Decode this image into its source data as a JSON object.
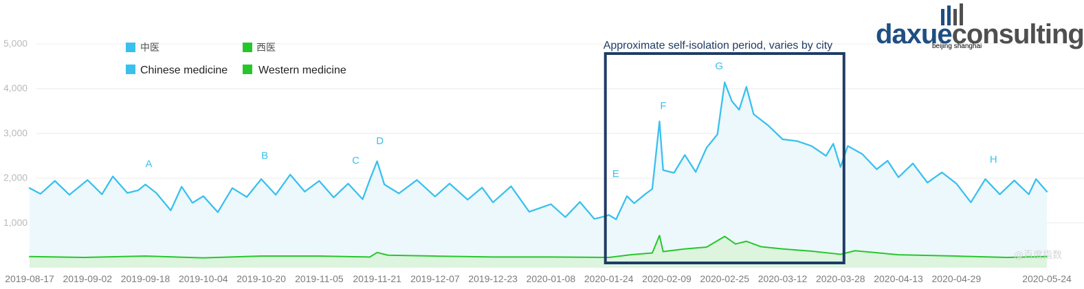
{
  "colors": {
    "chinese_line": "#39c0ee",
    "chinese_fill": "#edf8fc",
    "western_line": "#26c62b",
    "western_fill": "#ddf4df",
    "grid": "#ececec",
    "box": "#1f3c66",
    "brand_blue": "#1f4f82",
    "brand_gray": "#4f4f4f"
  },
  "brand": {
    "main_dark": "daxue",
    "main_light": "consulting",
    "sub": "beijing shanghai"
  },
  "watermark": "@百度指数",
  "chart_data": {
    "type": "line",
    "ylim": [
      0,
      5000
    ],
    "yticks": [
      {
        "value": 1000,
        "label": "1,000"
      },
      {
        "value": 2000,
        "label": "2,000"
      },
      {
        "value": 3000,
        "label": "3,000"
      },
      {
        "value": 4000,
        "label": "4,000"
      },
      {
        "value": 5000,
        "label": "5,000"
      }
    ],
    "x_tick_labels": [
      "2019-08-17",
      "2019-09-02",
      "2019-09-18",
      "2019-10-04",
      "2019-10-20",
      "2019-11-05",
      "2019-11-21",
      "2019-12-07",
      "2019-12-23",
      "2020-01-08",
      "2020-01-24",
      "2020-02-09",
      "2020-02-25",
      "2020-03-12",
      "2020-03-28",
      "2020-04-13",
      "2020-04-29",
      "2020-05-24"
    ],
    "x_start": "2019-08-17",
    "x_end": "2020-05-24",
    "legend": [
      {
        "cn": "中医",
        "en": "Chinese medicine",
        "color": "#39c0ee"
      },
      {
        "cn": "西医",
        "en": "Western medicine",
        "color": "#26c62b"
      }
    ],
    "highlight_period": {
      "label": "Approximate self-isolation period, varies by city",
      "start": "2020-01-24",
      "end": "2020-03-28"
    },
    "annotations": [
      {
        "label": "A",
        "date": "2019-09-18",
        "value": 1880
      },
      {
        "label": "B",
        "date": "2019-10-20",
        "value": 2060
      },
      {
        "label": "C",
        "date": "2019-11-21",
        "value": 1970
      },
      {
        "label": "D",
        "date": "2019-11-21",
        "value": 2390
      },
      {
        "label": "E",
        "date": "2020-01-24",
        "value": 1690
      },
      {
        "label": "F",
        "date": "2020-02-09",
        "value": 3270
      },
      {
        "label": "G",
        "date": "2020-02-25",
        "value": 4140
      },
      {
        "label": "H",
        "date": "2020-04-29",
        "value": 1980
      }
    ],
    "series": [
      {
        "name": "Chinese medicine",
        "points": [
          [
            "2019-08-17",
            1780
          ],
          [
            "2019-08-20",
            1650
          ],
          [
            "2019-08-24",
            1940
          ],
          [
            "2019-08-28",
            1630
          ],
          [
            "2019-09-02",
            1960
          ],
          [
            "2019-09-06",
            1640
          ],
          [
            "2019-09-09",
            2040
          ],
          [
            "2019-09-13",
            1670
          ],
          [
            "2019-09-16",
            1730
          ],
          [
            "2019-09-18",
            1860
          ],
          [
            "2019-09-21",
            1670
          ],
          [
            "2019-09-25",
            1280
          ],
          [
            "2019-09-28",
            1810
          ],
          [
            "2019-10-01",
            1450
          ],
          [
            "2019-10-04",
            1600
          ],
          [
            "2019-10-08",
            1240
          ],
          [
            "2019-10-12",
            1780
          ],
          [
            "2019-10-16",
            1580
          ],
          [
            "2019-10-20",
            1980
          ],
          [
            "2019-10-24",
            1630
          ],
          [
            "2019-10-28",
            2080
          ],
          [
            "2019-11-01",
            1700
          ],
          [
            "2019-11-05",
            1940
          ],
          [
            "2019-11-09",
            1570
          ],
          [
            "2019-11-13",
            1880
          ],
          [
            "2019-11-17",
            1530
          ],
          [
            "2019-11-19",
            1970
          ],
          [
            "2019-11-21",
            2380
          ],
          [
            "2019-11-23",
            1860
          ],
          [
            "2019-11-27",
            1660
          ],
          [
            "2019-12-02",
            1960
          ],
          [
            "2019-12-07",
            1590
          ],
          [
            "2019-12-11",
            1880
          ],
          [
            "2019-12-16",
            1520
          ],
          [
            "2019-12-20",
            1790
          ],
          [
            "2019-12-23",
            1460
          ],
          [
            "2019-12-28",
            1820
          ],
          [
            "2020-01-02",
            1250
          ],
          [
            "2020-01-08",
            1420
          ],
          [
            "2020-01-12",
            1130
          ],
          [
            "2020-01-16",
            1470
          ],
          [
            "2020-01-20",
            1090
          ],
          [
            "2020-01-23",
            1150
          ],
          [
            "2020-01-24",
            1180
          ],
          [
            "2020-01-26",
            1080
          ],
          [
            "2020-01-29",
            1600
          ],
          [
            "2020-01-31",
            1440
          ],
          [
            "2020-02-03",
            1640
          ],
          [
            "2020-02-05",
            1760
          ],
          [
            "2020-02-07",
            3270
          ],
          [
            "2020-02-08",
            2180
          ],
          [
            "2020-02-11",
            2120
          ],
          [
            "2020-02-14",
            2520
          ],
          [
            "2020-02-17",
            2140
          ],
          [
            "2020-02-20",
            2680
          ],
          [
            "2020-02-23",
            2980
          ],
          [
            "2020-02-25",
            4140
          ],
          [
            "2020-02-27",
            3720
          ],
          [
            "2020-02-29",
            3530
          ],
          [
            "2020-03-02",
            4040
          ],
          [
            "2020-03-04",
            3430
          ],
          [
            "2020-03-08",
            3180
          ],
          [
            "2020-03-12",
            2870
          ],
          [
            "2020-03-16",
            2830
          ],
          [
            "2020-03-20",
            2720
          ],
          [
            "2020-03-24",
            2500
          ],
          [
            "2020-03-26",
            2770
          ],
          [
            "2020-03-28",
            2250
          ],
          [
            "2020-03-30",
            2720
          ],
          [
            "2020-04-03",
            2540
          ],
          [
            "2020-04-07",
            2200
          ],
          [
            "2020-04-10",
            2390
          ],
          [
            "2020-04-13",
            2020
          ],
          [
            "2020-04-17",
            2330
          ],
          [
            "2020-04-21",
            1900
          ],
          [
            "2020-04-25",
            2130
          ],
          [
            "2020-04-29",
            1880
          ],
          [
            "2020-05-03",
            1460
          ],
          [
            "2020-05-07",
            1980
          ],
          [
            "2020-05-11",
            1640
          ],
          [
            "2020-05-15",
            1950
          ],
          [
            "2020-05-19",
            1640
          ],
          [
            "2020-05-21",
            1980
          ],
          [
            "2020-05-24",
            1700
          ]
        ]
      },
      {
        "name": "Western medicine",
        "points": [
          [
            "2019-08-17",
            250
          ],
          [
            "2019-09-01",
            230
          ],
          [
            "2019-09-18",
            260
          ],
          [
            "2019-10-04",
            220
          ],
          [
            "2019-10-20",
            260
          ],
          [
            "2019-11-05",
            260
          ],
          [
            "2019-11-19",
            240
          ],
          [
            "2019-11-21",
            340
          ],
          [
            "2019-11-24",
            280
          ],
          [
            "2019-12-07",
            260
          ],
          [
            "2019-12-23",
            240
          ],
          [
            "2020-01-08",
            240
          ],
          [
            "2020-01-24",
            230
          ],
          [
            "2020-01-30",
            290
          ],
          [
            "2020-02-05",
            330
          ],
          [
            "2020-02-07",
            720
          ],
          [
            "2020-02-08",
            360
          ],
          [
            "2020-02-14",
            420
          ],
          [
            "2020-02-20",
            460
          ],
          [
            "2020-02-25",
            700
          ],
          [
            "2020-02-28",
            530
          ],
          [
            "2020-03-02",
            590
          ],
          [
            "2020-03-06",
            470
          ],
          [
            "2020-03-12",
            420
          ],
          [
            "2020-03-20",
            370
          ],
          [
            "2020-03-28",
            300
          ],
          [
            "2020-04-01",
            380
          ],
          [
            "2020-04-13",
            290
          ],
          [
            "2020-04-29",
            260
          ],
          [
            "2020-05-13",
            230
          ],
          [
            "2020-05-24",
            250
          ]
        ]
      }
    ]
  }
}
